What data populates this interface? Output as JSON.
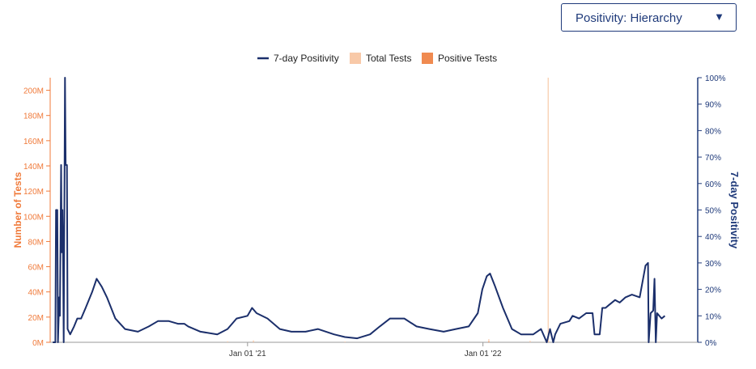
{
  "selector": {
    "value": "Positivity: Hierarchy",
    "caret": "▼"
  },
  "colors": {
    "positivity_line": "#1b2f6b",
    "total_tests": "#f8c9a8",
    "positive_tests": "#f08a50",
    "left_axis": "#f07a3a",
    "right_axis": "#1f3a7a"
  },
  "chart_data": {
    "type": "line",
    "title": "",
    "legend": {
      "placement": "top-center",
      "entries": [
        {
          "key": "positivity",
          "label": "7-day Positivity",
          "marker": "line"
        },
        {
          "key": "total",
          "label": "Total Tests",
          "marker": "box"
        },
        {
          "key": "positive",
          "label": "Positive Tests",
          "marker": "box"
        }
      ]
    },
    "y_left": {
      "label": "Number of Tests",
      "range": [
        0,
        210000000
      ],
      "ticks": [
        0,
        20000000,
        40000000,
        60000000,
        80000000,
        100000000,
        120000000,
        140000000,
        160000000,
        180000000,
        200000000
      ],
      "tick_labels": [
        "0M",
        "20M",
        "40M",
        "60M",
        "80M",
        "100M",
        "120M",
        "140M",
        "160M",
        "180M",
        "200M"
      ]
    },
    "y_right": {
      "label": "7-day Positivity",
      "range": [
        0,
        100
      ],
      "ticks": [
        0,
        10,
        20,
        30,
        40,
        50,
        60,
        70,
        80,
        90,
        100
      ],
      "tick_labels": [
        "0%",
        "10%",
        "20%",
        "30%",
        "40%",
        "50%",
        "60%",
        "70%",
        "80%",
        "90%",
        "100%"
      ]
    },
    "x": {
      "range": [
        "2020-03-01",
        "2022-11-30"
      ],
      "ticks": [
        "2021-01-01",
        "2022-01-01"
      ],
      "tick_labels": [
        "Jan 01 '21",
        "Jan 01 '22"
      ]
    },
    "series": [
      {
        "name": "7-day Positivity",
        "key": "positivity",
        "axis": "right",
        "points": [
          [
            "2020-03-05",
            0
          ],
          [
            "2020-03-09",
            0
          ],
          [
            "2020-03-10",
            50
          ],
          [
            "2020-03-12",
            50
          ],
          [
            "2020-03-13",
            0
          ],
          [
            "2020-03-15",
            17
          ],
          [
            "2020-03-16",
            10
          ],
          [
            "2020-03-18",
            67
          ],
          [
            "2020-03-19",
            34
          ],
          [
            "2020-03-20",
            50
          ],
          [
            "2020-03-21",
            33
          ],
          [
            "2020-03-22",
            0
          ],
          [
            "2020-03-24",
            100
          ],
          [
            "2020-03-25",
            67
          ],
          [
            "2020-03-27",
            67
          ],
          [
            "2020-03-28",
            5
          ],
          [
            "2020-04-01",
            3
          ],
          [
            "2020-04-07",
            6
          ],
          [
            "2020-04-12",
            9
          ],
          [
            "2020-04-18",
            9
          ],
          [
            "2020-04-25",
            13
          ],
          [
            "2020-05-05",
            19
          ],
          [
            "2020-05-12",
            24
          ],
          [
            "2020-05-20",
            21
          ],
          [
            "2020-05-28",
            17
          ],
          [
            "2020-06-10",
            9
          ],
          [
            "2020-06-25",
            5
          ],
          [
            "2020-07-15",
            4
          ],
          [
            "2020-08-01",
            6
          ],
          [
            "2020-08-15",
            8
          ],
          [
            "2020-09-01",
            8
          ],
          [
            "2020-09-15",
            7
          ],
          [
            "2020-09-25",
            7
          ],
          [
            "2020-10-01",
            6
          ],
          [
            "2020-10-20",
            4
          ],
          [
            "2020-11-15",
            3
          ],
          [
            "2020-12-01",
            5
          ],
          [
            "2020-12-15",
            9
          ],
          [
            "2021-01-01",
            10
          ],
          [
            "2021-01-08",
            13
          ],
          [
            "2021-01-15",
            11
          ],
          [
            "2021-02-01",
            9
          ],
          [
            "2021-02-20",
            5
          ],
          [
            "2021-03-10",
            4
          ],
          [
            "2021-04-01",
            4
          ],
          [
            "2021-04-20",
            5
          ],
          [
            "2021-05-15",
            3
          ],
          [
            "2021-06-01",
            2
          ],
          [
            "2021-06-20",
            1.5
          ],
          [
            "2021-07-10",
            3
          ],
          [
            "2021-07-25",
            6
          ],
          [
            "2021-08-10",
            9
          ],
          [
            "2021-09-01",
            9
          ],
          [
            "2021-09-20",
            6
          ],
          [
            "2021-10-10",
            5
          ],
          [
            "2021-11-01",
            4
          ],
          [
            "2021-11-20",
            5
          ],
          [
            "2021-12-10",
            6
          ],
          [
            "2021-12-24",
            11
          ],
          [
            "2021-12-31",
            20
          ],
          [
            "2022-01-07",
            25
          ],
          [
            "2022-01-12",
            26
          ],
          [
            "2022-01-20",
            21
          ],
          [
            "2022-02-01",
            13
          ],
          [
            "2022-02-15",
            5
          ],
          [
            "2022-03-01",
            3
          ],
          [
            "2022-03-20",
            3
          ],
          [
            "2022-04-01",
            5
          ],
          [
            "2022-04-10",
            0
          ],
          [
            "2022-04-15",
            5
          ],
          [
            "2022-04-20",
            0
          ],
          [
            "2022-04-23",
            3
          ],
          [
            "2022-05-01",
            7
          ],
          [
            "2022-05-15",
            8
          ],
          [
            "2022-05-20",
            10
          ],
          [
            "2022-05-30",
            9
          ],
          [
            "2022-06-10",
            11
          ],
          [
            "2022-06-20",
            11
          ],
          [
            "2022-06-23",
            3
          ],
          [
            "2022-07-01",
            3
          ],
          [
            "2022-07-05",
            13
          ],
          [
            "2022-07-10",
            13
          ],
          [
            "2022-07-15",
            14
          ],
          [
            "2022-07-25",
            16
          ],
          [
            "2022-08-01",
            15
          ],
          [
            "2022-08-10",
            17
          ],
          [
            "2022-08-20",
            18
          ],
          [
            "2022-09-01",
            17
          ],
          [
            "2022-09-10",
            29
          ],
          [
            "2022-09-14",
            30
          ],
          [
            "2022-09-15",
            0
          ],
          [
            "2022-09-18",
            11
          ],
          [
            "2022-09-22",
            12
          ],
          [
            "2022-09-24",
            24
          ],
          [
            "2022-09-26",
            0
          ],
          [
            "2022-09-28",
            11
          ],
          [
            "2022-10-05",
            9
          ],
          [
            "2022-10-10",
            10
          ]
        ]
      },
      {
        "name": "Total Tests",
        "key": "total",
        "axis": "left",
        "values_note": "",
        "points": [
          [
            "2020-03-01",
            0
          ],
          [
            "2020-12-01",
            800000
          ],
          [
            "2021-01-10",
            1500000
          ],
          [
            "2021-06-01",
            600000
          ],
          [
            "2022-01-10",
            2500000
          ],
          [
            "2022-03-15",
            1200000
          ],
          [
            "2022-04-12",
            210000000
          ],
          [
            "2022-04-13",
            800000
          ],
          [
            "2022-10-01",
            500000
          ]
        ]
      },
      {
        "name": "Positive Tests",
        "key": "positive",
        "axis": "left",
        "points": [
          [
            "2020-03-01",
            0
          ],
          [
            "2021-01-10",
            150000
          ],
          [
            "2022-01-10",
            600000
          ],
          [
            "2022-10-01",
            60000
          ]
        ]
      }
    ]
  }
}
